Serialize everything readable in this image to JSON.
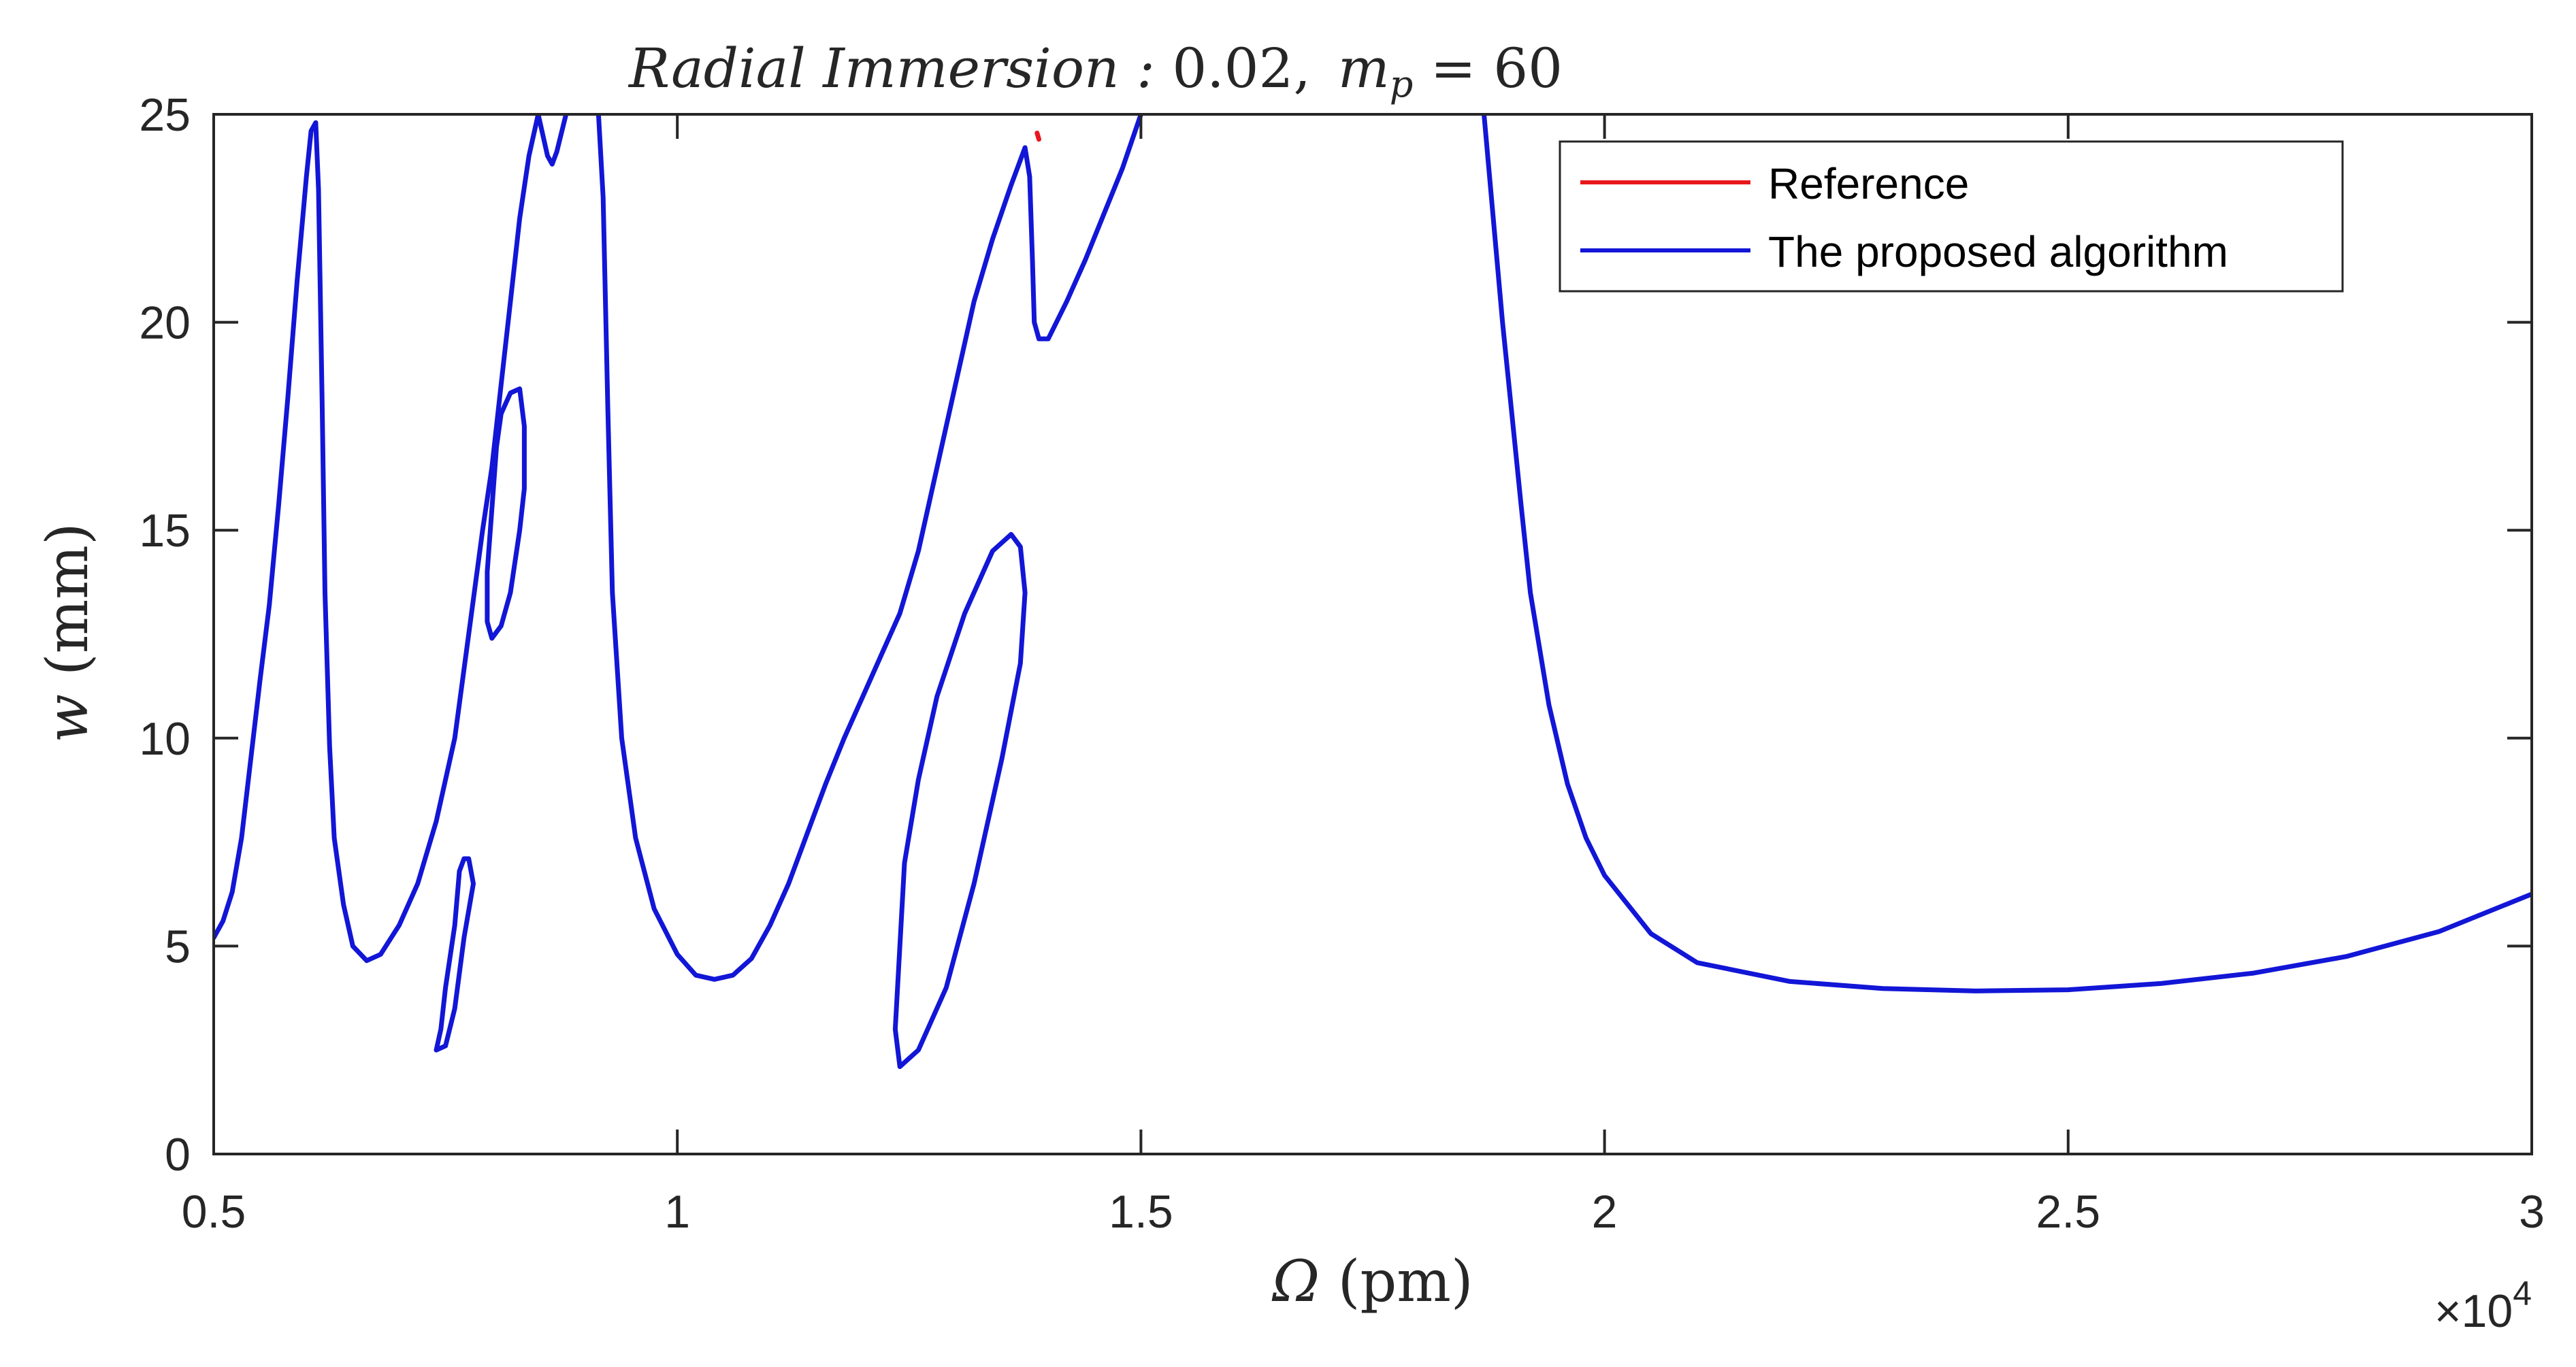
{
  "chart_data": {
    "type": "line",
    "title": {
      "prefix": "Radial Immersion :",
      "value": " 0.02,",
      "param_m": "m",
      "param_sub": "p",
      "param_rest": " = 60"
    },
    "xlabel": {
      "symbol": "Ω",
      "unit": " (pm)"
    },
    "ylabel": {
      "symbol": "w",
      "unit": " (mm)"
    },
    "x_multiplier": {
      "times": "×10",
      "exp": "4"
    },
    "xlim": [
      0.5,
      3.0
    ],
    "ylim": [
      0,
      25
    ],
    "xticks": [
      {
        "value": 0.5,
        "label": "0.5"
      },
      {
        "value": 1.0,
        "label": "1"
      },
      {
        "value": 1.5,
        "label": "1.5"
      },
      {
        "value": 2.0,
        "label": "2"
      },
      {
        "value": 2.5,
        "label": "2.5"
      },
      {
        "value": 3.0,
        "label": "3"
      }
    ],
    "yticks": [
      {
        "value": 0,
        "label": "0"
      },
      {
        "value": 5,
        "label": "5"
      },
      {
        "value": 10,
        "label": "10"
      },
      {
        "value": 15,
        "label": "15"
      },
      {
        "value": 20,
        "label": "20"
      },
      {
        "value": 25,
        "label": "25"
      }
    ],
    "legend": {
      "position": "top-right",
      "entries": [
        {
          "label": "Reference",
          "color": "#e8171c"
        },
        {
          "label": "The proposed algorithm",
          "color": "#1216d6"
        }
      ]
    },
    "series": [
      {
        "name": "The proposed algorithm",
        "color": "#1216d6",
        "segments": [
          [
            [
              0.5,
              5.2
            ],
            [
              0.51,
              5.6
            ],
            [
              0.52,
              6.3
            ],
            [
              0.53,
              7.6
            ],
            [
              0.54,
              9.5
            ],
            [
              0.55,
              11.4
            ],
            [
              0.56,
              13.2
            ],
            [
              0.57,
              15.6
            ],
            [
              0.58,
              18.2
            ],
            [
              0.59,
              21.0
            ],
            [
              0.6,
              23.5
            ],
            [
              0.605,
              24.6
            ],
            [
              0.61,
              24.8
            ],
            [
              0.613,
              23.2
            ],
            [
              0.617,
              18.0
            ],
            [
              0.62,
              13.5
            ],
            [
              0.625,
              9.8
            ],
            [
              0.63,
              7.6
            ],
            [
              0.64,
              6.0
            ],
            [
              0.65,
              5.0
            ],
            [
              0.665,
              4.65
            ],
            [
              0.68,
              4.8
            ],
            [
              0.7,
              5.5
            ],
            [
              0.72,
              6.5
            ],
            [
              0.74,
              8.0
            ],
            [
              0.76,
              10.0
            ],
            [
              0.775,
              12.5
            ],
            [
              0.79,
              15.0
            ],
            [
              0.8,
              16.5
            ],
            [
              0.81,
              18.5
            ],
            [
              0.82,
              20.5
            ],
            [
              0.83,
              22.5
            ],
            [
              0.84,
              24.0
            ],
            [
              0.85,
              25.0
            ]
          ],
          [
            [
              0.85,
              25.0
            ],
            [
              0.86,
              24.0
            ],
            [
              0.865,
              23.8
            ],
            [
              0.87,
              24.1
            ],
            [
              0.88,
              25.0
            ]
          ],
          [
            [
              0.915,
              25.0
            ],
            [
              0.92,
              23.0
            ],
            [
              0.925,
              18.0
            ],
            [
              0.93,
              13.5
            ],
            [
              0.94,
              10.0
            ],
            [
              0.955,
              7.6
            ],
            [
              0.975,
              5.9
            ],
            [
              1.0,
              4.8
            ],
            [
              1.02,
              4.3
            ],
            [
              1.04,
              4.2
            ],
            [
              1.06,
              4.3
            ],
            [
              1.08,
              4.7
            ],
            [
              1.1,
              5.5
            ],
            [
              1.12,
              6.5
            ],
            [
              1.14,
              7.7
            ],
            [
              1.16,
              8.9
            ],
            [
              1.18,
              10.0
            ],
            [
              1.2,
              11.0
            ],
            [
              1.22,
              12.0
            ],
            [
              1.24,
              13.0
            ],
            [
              1.26,
              14.5
            ],
            [
              1.28,
              16.5
            ],
            [
              1.3,
              18.5
            ],
            [
              1.32,
              20.5
            ],
            [
              1.34,
              22.0
            ],
            [
              1.36,
              23.3
            ],
            [
              1.375,
              24.2
            ],
            [
              1.38,
              23.5
            ],
            [
              1.383,
              21.5
            ],
            [
              1.385,
              20.0
            ],
            [
              1.39,
              19.6
            ],
            [
              1.4,
              19.6
            ],
            [
              1.42,
              20.5
            ],
            [
              1.44,
              21.5
            ],
            [
              1.46,
              22.6
            ],
            [
              1.48,
              23.7
            ],
            [
              1.5,
              25.0
            ]
          ],
          [
            [
              1.87,
              25.0
            ],
            [
              1.88,
              22.5
            ],
            [
              1.89,
              20.0
            ],
            [
              1.9,
              17.8
            ],
            [
              1.91,
              15.6
            ],
            [
              1.92,
              13.5
            ],
            [
              1.94,
              10.8
            ],
            [
              1.96,
              8.9
            ],
            [
              1.98,
              7.6
            ],
            [
              2.0,
              6.7
            ],
            [
              2.05,
              5.3
            ],
            [
              2.1,
              4.6
            ],
            [
              2.2,
              4.15
            ],
            [
              2.3,
              3.98
            ],
            [
              2.4,
              3.92
            ],
            [
              2.5,
              3.95
            ],
            [
              2.6,
              4.1
            ],
            [
              2.7,
              4.35
            ],
            [
              2.8,
              4.75
            ],
            [
              2.9,
              5.35
            ],
            [
              3.0,
              6.25
            ]
          ],
          [
            [
              0.805,
              17.0
            ],
            [
              0.81,
              17.8
            ],
            [
              0.82,
              18.3
            ],
            [
              0.83,
              18.4
            ],
            [
              0.835,
              17.5
            ],
            [
              0.835,
              16.0
            ],
            [
              0.83,
              15.0
            ],
            [
              0.82,
              13.5
            ],
            [
              0.81,
              12.7
            ],
            [
              0.8,
              12.4
            ],
            [
              0.795,
              12.8
            ],
            [
              0.795,
              14.0
            ],
            [
              0.8,
              15.5
            ],
            [
              0.805,
              17.0
            ]
          ],
          [
            [
              0.74,
              2.5
            ],
            [
              0.75,
              2.6
            ],
            [
              0.76,
              3.5
            ],
            [
              0.77,
              5.2
            ],
            [
              0.78,
              6.5
            ],
            [
              0.775,
              7.1
            ],
            [
              0.77,
              7.1
            ],
            [
              0.765,
              6.8
            ],
            [
              0.76,
              5.5
            ],
            [
              0.75,
              4.0
            ],
            [
              0.745,
              3.0
            ],
            [
              0.74,
              2.5
            ]
          ],
          [
            [
              1.24,
              2.1
            ],
            [
              1.26,
              2.5
            ],
            [
              1.29,
              4.0
            ],
            [
              1.32,
              6.5
            ],
            [
              1.35,
              9.5
            ],
            [
              1.37,
              11.8
            ],
            [
              1.375,
              13.5
            ],
            [
              1.37,
              14.6
            ],
            [
              1.36,
              14.9
            ],
            [
              1.34,
              14.5
            ],
            [
              1.31,
              13.0
            ],
            [
              1.28,
              11.0
            ],
            [
              1.26,
              9.0
            ],
            [
              1.245,
              7.0
            ],
            [
              1.24,
              5.0
            ],
            [
              1.235,
              3.0
            ],
            [
              1.24,
              2.1
            ]
          ]
        ]
      },
      {
        "name": "Reference",
        "color": "#e8171c",
        "segments": [
          [
            [
              1.388,
              24.55
            ],
            [
              1.39,
              24.4
            ]
          ]
        ]
      }
    ]
  }
}
